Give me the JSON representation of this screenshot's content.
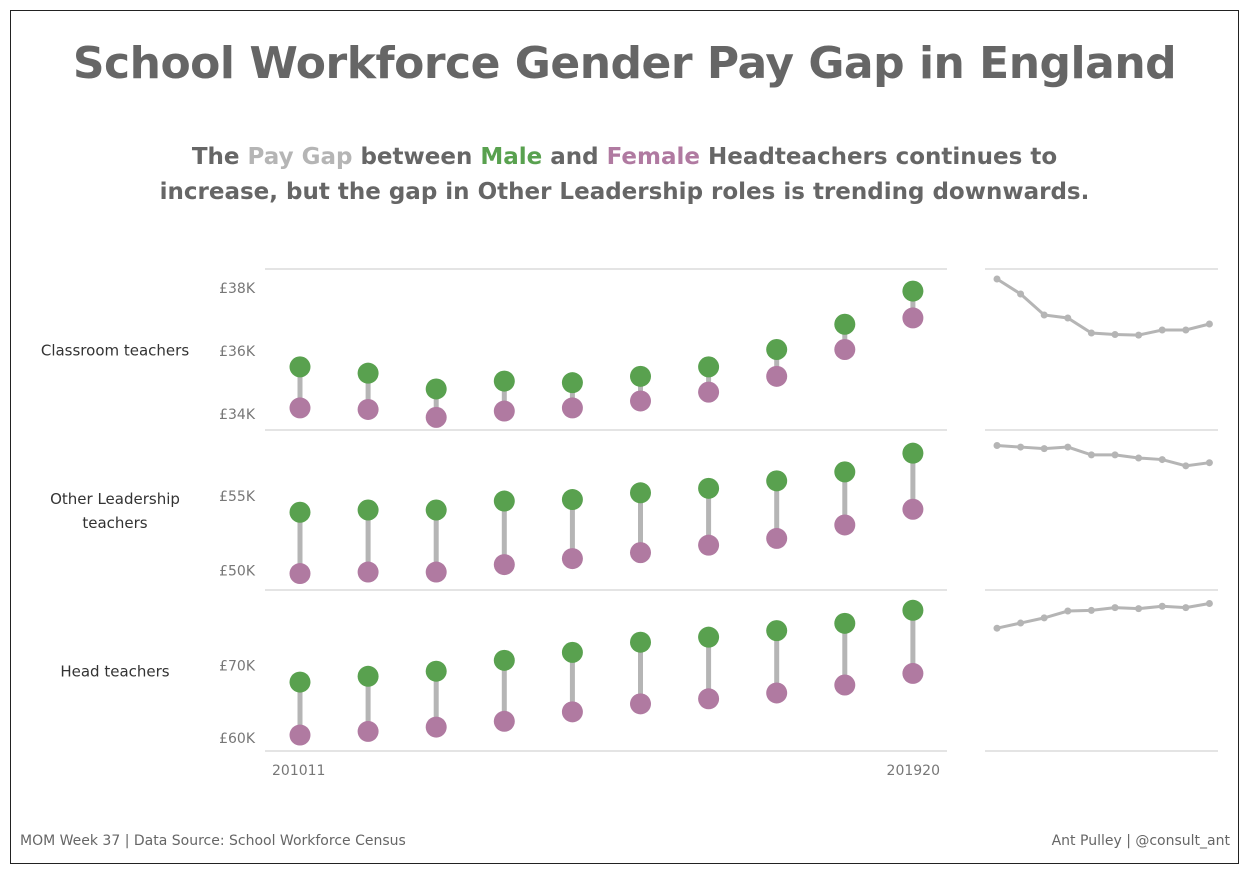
{
  "title": "School Workforce Gender Pay Gap in England",
  "subtitle": {
    "line1": [
      {
        "text": "The ",
        "color": "#666666"
      },
      {
        "text": "Pay Gap",
        "color": "#b5b5b5"
      },
      {
        "text": " between ",
        "color": "#666666"
      },
      {
        "text": "Male",
        "color": "#59a14f"
      },
      {
        "text": " and ",
        "color": "#666666"
      },
      {
        "text": "Female",
        "color": "#b07aa1"
      },
      {
        "text": " Headteachers continues to",
        "color": "#666666"
      }
    ],
    "line2": "increase, but the gap in Other Leadership roles is trending downwards."
  },
  "footer": {
    "left": "MOM Week 37 | Data Source: School Workforce Census",
    "right": "Ant Pulley | @consult_ant"
  },
  "colors": {
    "male": "#59a14f",
    "female": "#b07aa1",
    "gap": "#b5b5b5",
    "divider": "#c8c8c8"
  },
  "chart_data": [
    {
      "type": "dumbbell",
      "row_label": [
        "Classroom teachers"
      ],
      "categories": [
        "201011",
        "",
        "",
        "",
        "",
        "",
        "",
        "",
        "",
        "201920"
      ],
      "y_ticks": [
        {
          "value": 34000,
          "label": "£34K"
        },
        {
          "value": 36000,
          "label": "£36K"
        },
        {
          "value": 38000,
          "label": "£38K"
        }
      ],
      "ylim": [
        33500,
        38600
      ],
      "series": [
        {
          "name": "Male",
          "values": [
            35500,
            35300,
            34800,
            35050,
            35000,
            35200,
            35500,
            36050,
            36850,
            37900
          ]
        },
        {
          "name": "Female",
          "values": [
            34200,
            34150,
            33900,
            34100,
            34200,
            34420,
            34700,
            35200,
            36050,
            37050
          ]
        }
      ]
    },
    {
      "type": "dumbbell",
      "row_label": [
        "Other Leadership",
        "teachers"
      ],
      "categories": [
        "201011",
        "",
        "",
        "",
        "",
        "",
        "",
        "",
        "",
        "201920"
      ],
      "y_ticks": [
        {
          "value": 50000,
          "label": "£50K"
        },
        {
          "value": 55000,
          "label": "£55K"
        }
      ],
      "ylim": [
        48700,
        59400
      ],
      "series": [
        {
          "name": "Male",
          "values": [
            53900,
            54050,
            54050,
            54650,
            54750,
            55200,
            55500,
            56000,
            56600,
            57850
          ]
        },
        {
          "name": "Female",
          "values": [
            49800,
            49900,
            49900,
            50400,
            50800,
            51200,
            51700,
            52150,
            53050,
            54100
          ]
        }
      ]
    },
    {
      "type": "dumbbell",
      "row_label": [
        "Head teachers"
      ],
      "categories": [
        "201011",
        "",
        "",
        "",
        "",
        "",
        "",
        "",
        "",
        "201920"
      ],
      "y_ticks": [
        {
          "value": 60000,
          "label": "£60K"
        },
        {
          "value": 70000,
          "label": "£70K"
        }
      ],
      "ylim": [
        58200,
        80400
      ],
      "series": [
        {
          "name": "Male",
          "values": [
            67700,
            68500,
            69200,
            70700,
            71800,
            73200,
            73900,
            74800,
            75800,
            77600
          ]
        },
        {
          "name": "Female",
          "values": [
            60400,
            60900,
            61500,
            62300,
            63600,
            64700,
            65400,
            66200,
            67300,
            68900
          ]
        }
      ]
    },
    {
      "type": "line",
      "description": "Pay gap trend (Male minus Female)",
      "x": [
        "201011",
        "",
        "",
        "",
        "",
        "",
        "",
        "",
        "",
        "201920"
      ],
      "series": [
        {
          "values": [
            7.2,
            6.7,
            6.0,
            5.9,
            5.4,
            5.35,
            5.33,
            5.5,
            5.5,
            5.7
          ],
          "row": 0
        },
        {
          "values": [
            7.0,
            6.95,
            6.9,
            6.95,
            6.7,
            6.7,
            6.6,
            6.55,
            6.35,
            6.45
          ],
          "row": 1
        },
        {
          "values": [
            5.3,
            5.45,
            5.6,
            5.8,
            5.82,
            5.9,
            5.87,
            5.94,
            5.9,
            6.02
          ],
          "row": 2
        }
      ]
    }
  ]
}
